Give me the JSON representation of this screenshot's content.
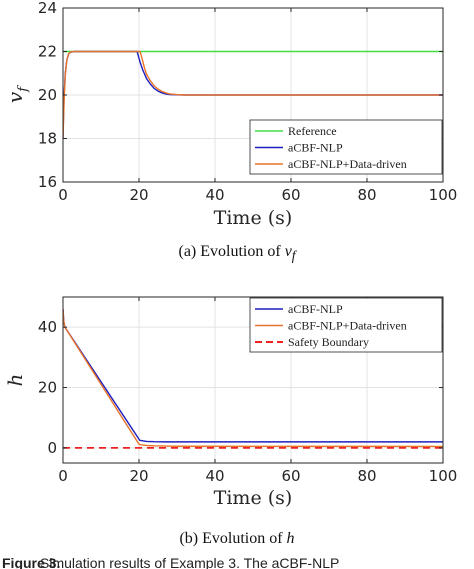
{
  "chart_data": [
    {
      "type": "line",
      "xlabel": "Time (s)",
      "ylabel": "v",
      "ylabel_subscript": "f",
      "xlim": [
        0,
        100
      ],
      "ylim": [
        16,
        24
      ],
      "xticks": [
        "0",
        "20",
        "40",
        "60",
        "80",
        "100"
      ],
      "yticks": [
        "16",
        "18",
        "20",
        "22",
        "24"
      ],
      "grid": true,
      "legend_position": "bottom-right",
      "series": [
        {
          "name": "Reference",
          "color": "#44dd44",
          "dash": false,
          "x": [
            0,
            100
          ],
          "y": [
            22,
            22
          ]
        },
        {
          "name": "aCBF-NLP",
          "color": "#1f1fbf",
          "dash": false,
          "x": [
            0,
            0.1,
            0.3,
            0.6,
            1.0,
            1.5,
            2.0,
            3.0,
            19.5,
            20.3,
            21.0,
            22.0,
            23.0,
            24.0,
            25.0,
            26.0,
            27.0,
            28.0,
            30.0,
            32.0,
            100
          ],
          "y": [
            18,
            18.8,
            20.0,
            21.0,
            21.6,
            21.9,
            21.97,
            22.0,
            22.0,
            21.5,
            21.15,
            20.75,
            20.5,
            20.3,
            20.18,
            20.1,
            20.05,
            20.02,
            20.01,
            20.0,
            20.0
          ]
        },
        {
          "name": "aCBF-NLP+Data-driven",
          "color": "#e8742a",
          "dash": false,
          "x": [
            0,
            0.1,
            0.3,
            0.6,
            1.0,
            1.5,
            2.0,
            3.0,
            20.3,
            21.0,
            21.5,
            22.0,
            23.0,
            24.0,
            25.0,
            26.0,
            27.0,
            28.0,
            30.0,
            32.0,
            100
          ],
          "y": [
            18,
            18.6,
            19.8,
            20.9,
            21.6,
            21.9,
            21.98,
            22.0,
            22.0,
            21.55,
            21.2,
            20.95,
            20.65,
            20.42,
            20.27,
            20.17,
            20.1,
            20.05,
            20.02,
            20.0,
            20.0
          ]
        }
      ]
    },
    {
      "type": "line",
      "xlabel": "Time (s)",
      "ylabel": "h",
      "xlim": [
        0,
        100
      ],
      "ylim": [
        -5,
        50
      ],
      "xticks": [
        "0",
        "20",
        "40",
        "60",
        "80",
        "100"
      ],
      "yticks": [
        "0",
        "20",
        "40"
      ],
      "grid": true,
      "legend_position": "top-right",
      "series": [
        {
          "name": "aCBF-NLP",
          "color": "#1f1fbf",
          "dash": false,
          "x": [
            0,
            0.2,
            0.5,
            20.2,
            21.0,
            22.0,
            24.0,
            27.0,
            30.0,
            100
          ],
          "y": [
            46,
            42,
            40,
            2.5,
            2.35,
            2.15,
            2.05,
            2.0,
            2.0,
            2.0
          ]
        },
        {
          "name": "aCBF-NLP+Data-driven",
          "color": "#e8742a",
          "dash": false,
          "x": [
            0,
            0.2,
            0.5,
            20.0,
            21.0,
            22.0,
            24.0,
            27.0,
            30.0,
            100
          ],
          "y": [
            46,
            42,
            40,
            1.2,
            0.95,
            0.8,
            0.68,
            0.6,
            0.55,
            0.5
          ]
        },
        {
          "name": "Safety Boundary",
          "color": "#ee2222",
          "dash": true,
          "x": [
            0,
            100
          ],
          "y": [
            0,
            0
          ]
        }
      ]
    }
  ],
  "captions": {
    "a_text": "(a) Evolution of ",
    "a_var": "v",
    "a_sub": "f",
    "b_text": "(b) Evolution of ",
    "b_var": "h"
  },
  "footer": {
    "bold": "Figure 3.",
    "text": "Simulation results of Example 3. The aCBF-NLP"
  }
}
